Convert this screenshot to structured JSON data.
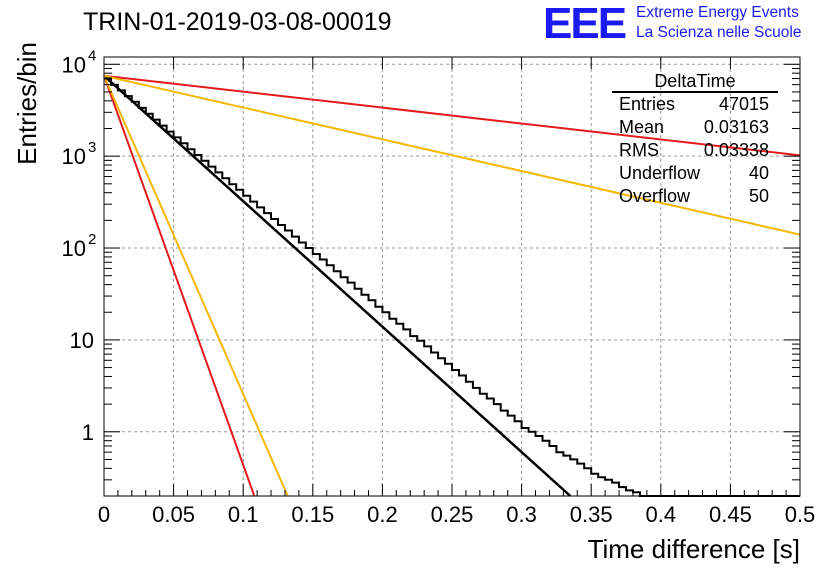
{
  "header": {
    "title": "TRIN-01-2019-03-08-00019",
    "logo_text": "EEE",
    "logo_line1": "Extreme Energy Events",
    "logo_line2": "La Scienza nelle Scuole"
  },
  "stats_box": {
    "title": "DeltaTime",
    "rows": [
      {
        "label": "Entries",
        "value": "47015"
      },
      {
        "label": "Mean",
        "value": "0.03163"
      },
      {
        "label": "RMS",
        "value": "0.03338"
      },
      {
        "label": "Underflow",
        "value": "40"
      },
      {
        "label": "Overflow",
        "value": "50"
      }
    ]
  },
  "chart_data": {
    "type": "histogram",
    "title": "TRIN-01-2019-03-08-00019",
    "xlabel": "Time difference [s]",
    "ylabel": "Entries/bin",
    "xlim": [
      0,
      0.5
    ],
    "ylim": [
      0.2,
      12000
    ],
    "yscale": "log",
    "grid": true,
    "x_ticks": [
      "0",
      "0.05",
      "0.1",
      "0.15",
      "0.2",
      "0.25",
      "0.3",
      "0.35",
      "0.4",
      "0.45",
      "0.5"
    ],
    "y_ticks": [
      {
        "value": 1,
        "base": "1",
        "exp": ""
      },
      {
        "value": 10,
        "base": "10",
        "exp": ""
      },
      {
        "value": 100,
        "base": "10",
        "exp": "2"
      },
      {
        "value": 1000,
        "base": "10",
        "exp": "3"
      },
      {
        "value": 10000,
        "base": "10",
        "exp": "4"
      }
    ],
    "histogram": {
      "bin_width": 0.005,
      "bin_start": 0,
      "counts": [
        7000,
        6000,
        5200,
        4500,
        3900,
        3350,
        2900,
        2500,
        2150,
        1850,
        1600,
        1380,
        1190,
        1030,
        890,
        770,
        665,
        575,
        495,
        430,
        370,
        320,
        277,
        240,
        207,
        178,
        155,
        133,
        115,
        100,
        86,
        75,
        65,
        56,
        48,
        42,
        36,
        31,
        27,
        23,
        20,
        17,
        15,
        13,
        11,
        9.8,
        8.5,
        7.3,
        6.3,
        5.5,
        4.7,
        4.1,
        3.5,
        3.0,
        2.6,
        2.3,
        2.0,
        1.7,
        1.5,
        1.3,
        1.1,
        1.0,
        0.9,
        0.8,
        0.7,
        0.6,
        0.55,
        0.5,
        0.45,
        0.4,
        0.35,
        0.32,
        0.3,
        0.28,
        0.25,
        0.23,
        0.22,
        0.2,
        0.2,
        0.2,
        0.2,
        0.2,
        0.2,
        0.2,
        0.2,
        0.2,
        0.2,
        0.2,
        0.2,
        0.2,
        0.2,
        0.2,
        0.2,
        0.2,
        0.2,
        0.2,
        0.2,
        0.2,
        0.2,
        0.2
      ],
      "color": "#000000"
    },
    "fits": [
      {
        "color": "#000000",
        "points": [
          [
            0,
            7500
          ],
          [
            0.335,
            0.2
          ]
        ]
      },
      {
        "color": "#e41a1c",
        "points": [
          [
            0,
            7500
          ],
          [
            0.108,
            0.2
          ]
        ]
      },
      {
        "color": "#e41a1c",
        "points": [
          [
            0,
            7500
          ],
          [
            0.5,
            1020
          ]
        ]
      },
      {
        "color": "#f5b800",
        "points": [
          [
            0,
            7500
          ],
          [
            0.132,
            0.2
          ]
        ]
      },
      {
        "color": "#f5b800",
        "points": [
          [
            0,
            7500
          ],
          [
            0.5,
            140
          ]
        ]
      }
    ]
  }
}
